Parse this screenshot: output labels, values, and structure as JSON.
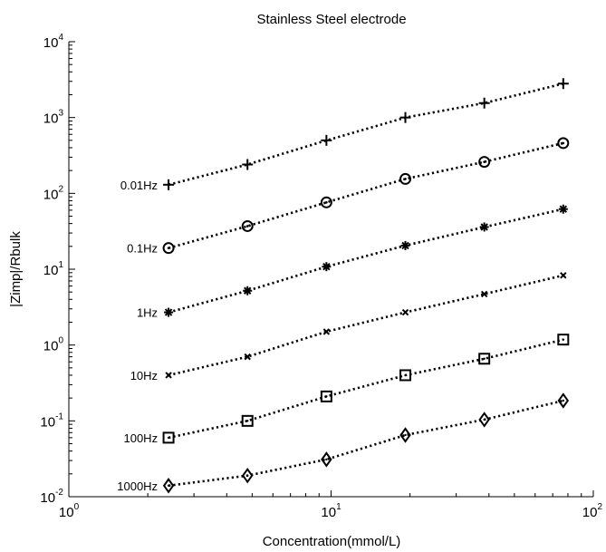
{
  "chart_data": {
    "type": "line",
    "title": "Stainless Steel electrode",
    "xlabel": "Concentration(mmol/L)",
    "ylabel": "|Zimp|/Rbulk",
    "x_scale": "log",
    "y_scale": "log",
    "xlim": [
      1,
      100
    ],
    "ylim": [
      0.01,
      10000
    ],
    "x_ticks": [
      {
        "base": "10",
        "exp": "0",
        "value": 1
      },
      {
        "base": "10",
        "exp": "1",
        "value": 10
      },
      {
        "base": "10",
        "exp": "2",
        "value": 100
      }
    ],
    "y_ticks": [
      {
        "base": "10",
        "exp": "-2",
        "value": 0.01
      },
      {
        "base": "10",
        "exp": "-1",
        "value": 0.1
      },
      {
        "base": "10",
        "exp": "0",
        "value": 1
      },
      {
        "base": "10",
        "exp": "1",
        "value": 10
      },
      {
        "base": "10",
        "exp": "2",
        "value": 100
      },
      {
        "base": "10",
        "exp": "3",
        "value": 1000
      },
      {
        "base": "10",
        "exp": "4",
        "value": 10000
      }
    ],
    "grid": false,
    "x": [
      2.4,
      4.8,
      9.6,
      19.2,
      38.4,
      76.8
    ],
    "series": [
      {
        "name": "0.01Hz",
        "marker": "plus",
        "values": [
          130,
          240,
          500,
          1000,
          1550,
          2800
        ]
      },
      {
        "name": "0.1Hz",
        "marker": "circle",
        "values": [
          19,
          37,
          76,
          155,
          260,
          460
        ]
      },
      {
        "name": "1Hz",
        "marker": "star",
        "values": [
          2.7,
          5.2,
          10.8,
          20.5,
          36,
          62
        ]
      },
      {
        "name": "10Hz",
        "marker": "cross",
        "values": [
          0.4,
          0.7,
          1.5,
          2.7,
          4.7,
          8.3
        ]
      },
      {
        "name": "100Hz",
        "marker": "square",
        "values": [
          0.06,
          0.1,
          0.21,
          0.4,
          0.66,
          1.18
        ]
      },
      {
        "name": "1000Hz",
        "marker": "diamond",
        "values": [
          0.014,
          0.019,
          0.031,
          0.065,
          0.104,
          0.185
        ]
      }
    ]
  }
}
